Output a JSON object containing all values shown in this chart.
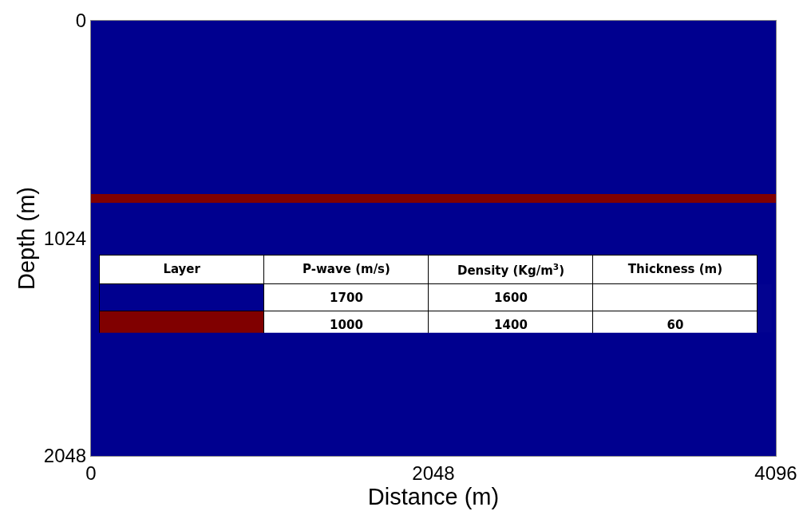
{
  "chart_data": {
    "type": "area",
    "stacked": true,
    "xlabel": "Distance (m)",
    "ylabel": "Depth (m)",
    "x": [
      0,
      4096
    ],
    "series": [
      {
        "color": "#00008f",
        "values": [
          815,
          815
        ]
      },
      {
        "color": "#800000",
        "values": [
          42,
          42
        ]
      },
      {
        "color": "#00008f",
        "values": [
          1191,
          1191
        ]
      }
    ],
    "xlim": [
      0,
      4096
    ],
    "xticks": [
      0,
      2048,
      4096
    ],
    "ylim": [
      2048,
      0
    ],
    "yticks": [
      0,
      1024,
      2048
    ],
    "annotations": [
      "Layer",
      "P-wave (m/s)",
      "Density (Kg/m$^{3}$)",
      "Thickness (m)",
      "1700",
      "1600",
      "1000",
      "1400",
      "60"
    ]
  }
}
